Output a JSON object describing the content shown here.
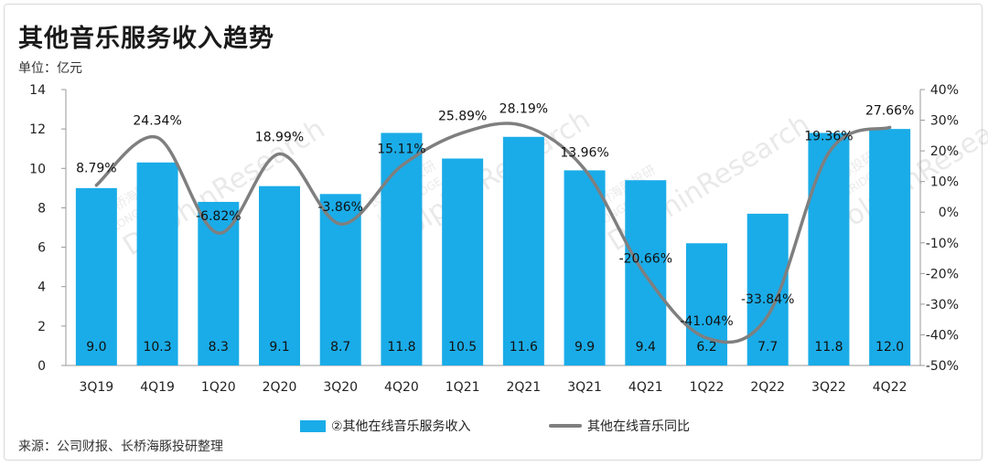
{
  "title": "其他音乐服务收入趋势",
  "unit_label": "单位：亿元",
  "source": "来源：公司财报、长桥海豚投研整理",
  "watermark": [
    "长桥海豚投研",
    "LONGBRIDGE",
    "DolphinResearch"
  ],
  "colors": {
    "bar": "#1aace8",
    "line": "#7f7f7f",
    "axis": "#999999"
  },
  "chart_data": {
    "type": "bar",
    "categories": [
      "3Q19",
      "4Q19",
      "1Q20",
      "2Q20",
      "3Q20",
      "4Q20",
      "1Q21",
      "2Q21",
      "3Q21",
      "4Q21",
      "1Q22",
      "2Q22",
      "3Q22",
      "4Q22"
    ],
    "series": [
      {
        "name": "②其他在线音乐服务收入",
        "type": "bar",
        "axis": "left",
        "values": [
          9.0,
          10.3,
          8.3,
          9.1,
          8.7,
          11.8,
          10.5,
          11.6,
          9.9,
          9.4,
          6.2,
          7.7,
          11.8,
          12.0
        ],
        "labels": [
          "9.0",
          "10.3",
          "8.3",
          "9.1",
          "8.7",
          "11.8",
          "10.5",
          "11.6",
          "9.9",
          "9.4",
          "6.2",
          "7.7",
          "11.8",
          "12.0"
        ]
      },
      {
        "name": "其他在线音乐同比",
        "type": "line",
        "axis": "right",
        "values": [
          8.79,
          24.34,
          -6.82,
          18.99,
          -3.86,
          15.11,
          25.89,
          28.19,
          13.96,
          -20.66,
          -41.04,
          -33.84,
          19.36,
          27.66
        ],
        "labels": [
          "8.79%",
          "24.34%",
          "-6.82%",
          "18.99%",
          "-3.86%",
          "15.11%",
          "25.89%",
          "28.19%",
          "13.96%",
          "-20.66%",
          "-41.04%",
          "-33.84%",
          "19.36%",
          "27.66%"
        ]
      }
    ],
    "y_left": {
      "min": 0,
      "max": 14,
      "ticks": [
        "0",
        "2",
        "4",
        "6",
        "8",
        "10",
        "12",
        "14"
      ]
    },
    "y_right": {
      "min": -50,
      "max": 40,
      "ticks": [
        "-50%",
        "-40%",
        "-30%",
        "-20%",
        "-10%",
        "0%",
        "10%",
        "20%",
        "30%",
        "40%"
      ]
    },
    "grid": false,
    "legend_position": "bottom"
  }
}
